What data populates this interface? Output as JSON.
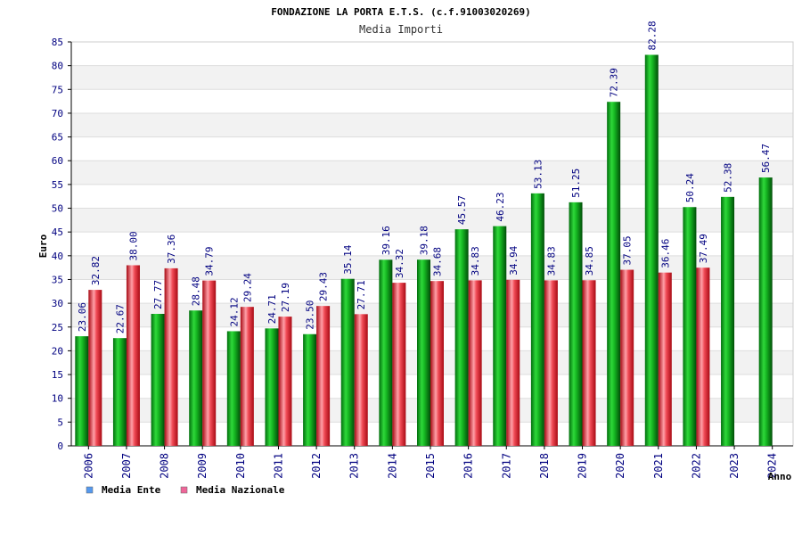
{
  "chart_data": {
    "type": "bar",
    "title": "FONDAZIONE LA PORTA E.T.S. (c.f.91003020269)",
    "subtitle": "Media Importi",
    "ylabel": "Euro",
    "xlabel": "Anno",
    "ylim": [
      0,
      85
    ],
    "ytick_step": 5,
    "grid": true,
    "legend_position": "bottom-left",
    "categories": [
      "2006",
      "2007",
      "2008",
      "2009",
      "2010",
      "2011",
      "2012",
      "2013",
      "2014",
      "2015",
      "2016",
      "2017",
      "2018",
      "2019",
      "2020",
      "2021",
      "2022",
      "2023",
      "2024"
    ],
    "series": [
      {
        "name": "Media Ente",
        "legend_color": "#5599ee",
        "bar_color": "#10b020",
        "values": [
          23.06,
          22.67,
          27.77,
          28.48,
          24.12,
          24.71,
          23.5,
          35.14,
          39.16,
          39.18,
          45.57,
          46.23,
          53.13,
          51.25,
          72.39,
          82.28,
          50.24,
          52.38,
          56.47
        ],
        "labels": [
          "23.06",
          "22.67",
          "27.77",
          "28.48",
          "24.12",
          "24.71",
          "23.50",
          "35.14",
          "39.16",
          "39.18",
          "45.57",
          "46.23",
          "53.13",
          "51.25",
          "72.39",
          "82.28",
          "50.24",
          "52.38",
          "56.47"
        ]
      },
      {
        "name": "Media Nazionale",
        "legend_color": "#ee6699",
        "bar_color": "#ee2233",
        "values": [
          32.82,
          38.0,
          37.36,
          34.79,
          29.24,
          27.19,
          29.43,
          27.71,
          34.32,
          34.68,
          34.83,
          34.94,
          34.83,
          34.85,
          37.05,
          36.46,
          37.49,
          null,
          null
        ],
        "labels": [
          "32.82",
          "38.00",
          "37.36",
          "34.79",
          "29.24",
          "27.19",
          "29.43",
          "27.71",
          "34.32",
          "34.68",
          "34.83",
          "34.94",
          "34.83",
          "34.85",
          "37.05",
          "36.46",
          "37.49",
          null,
          null
        ]
      }
    ],
    "colors": {
      "label_text": "#000080",
      "tick_text": "#000080",
      "title_text": "#000000",
      "subtitle_text": "#333333",
      "band": "#f2f2f2",
      "gridline": "#dddddd"
    }
  }
}
